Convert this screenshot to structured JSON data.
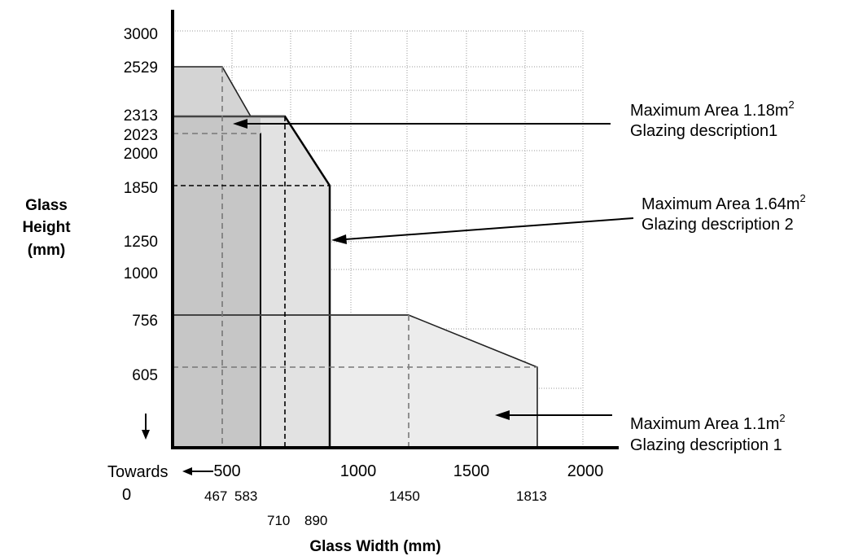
{
  "chart_data": {
    "type": "area",
    "xlabel": "Glass Width (mm)",
    "ylabel_lines": [
      "Glass",
      "Height",
      "(mm)"
    ],
    "x_ticks_major": [
      "500",
      "1000",
      "1500",
      "2000"
    ],
    "x_ticks_minor_row1": [
      "467",
      "583",
      "1450",
      "1813"
    ],
    "x_ticks_minor_row2": [
      "710",
      "890"
    ],
    "y_ticks": [
      "3000",
      "2529",
      "2313",
      "2023",
      "2000",
      "1850",
      "1250",
      "1000",
      "756",
      "605"
    ],
    "towards_zero": [
      "Towards",
      "0"
    ],
    "grid": true,
    "series": [
      {
        "glazing": "Glazing description1",
        "max_area_value": "Maximum Area 1.18m",
        "max_area_sup": "2",
        "outline": [
          [
            0,
            2529
          ],
          [
            467,
            2529
          ],
          [
            583,
            2023
          ],
          [
            583,
            0
          ]
        ],
        "dash_refs": {
          "x": 467,
          "y": 2023
        },
        "fill": "#d4d4d4"
      },
      {
        "glazing": "Glazing description 2",
        "max_area_value": "Maximum Area 1.64m",
        "max_area_sup": "2",
        "outline": [
          [
            0,
            2313
          ],
          [
            710,
            2313
          ],
          [
            890,
            1850
          ],
          [
            890,
            0
          ]
        ],
        "dash_refs": {
          "x": 710,
          "y": 1850
        },
        "fill": "#e2e2e2"
      },
      {
        "glazing": "Glazing description 1",
        "max_area_value": "Maximum Area 1.1m",
        "max_area_sup": "2",
        "outline": [
          [
            0,
            756
          ],
          [
            1450,
            756
          ],
          [
            1813,
            605
          ],
          [
            1813,
            0
          ]
        ],
        "dash_refs": {
          "x": 1450,
          "y": 605
        },
        "fill": "#ececec"
      }
    ]
  }
}
